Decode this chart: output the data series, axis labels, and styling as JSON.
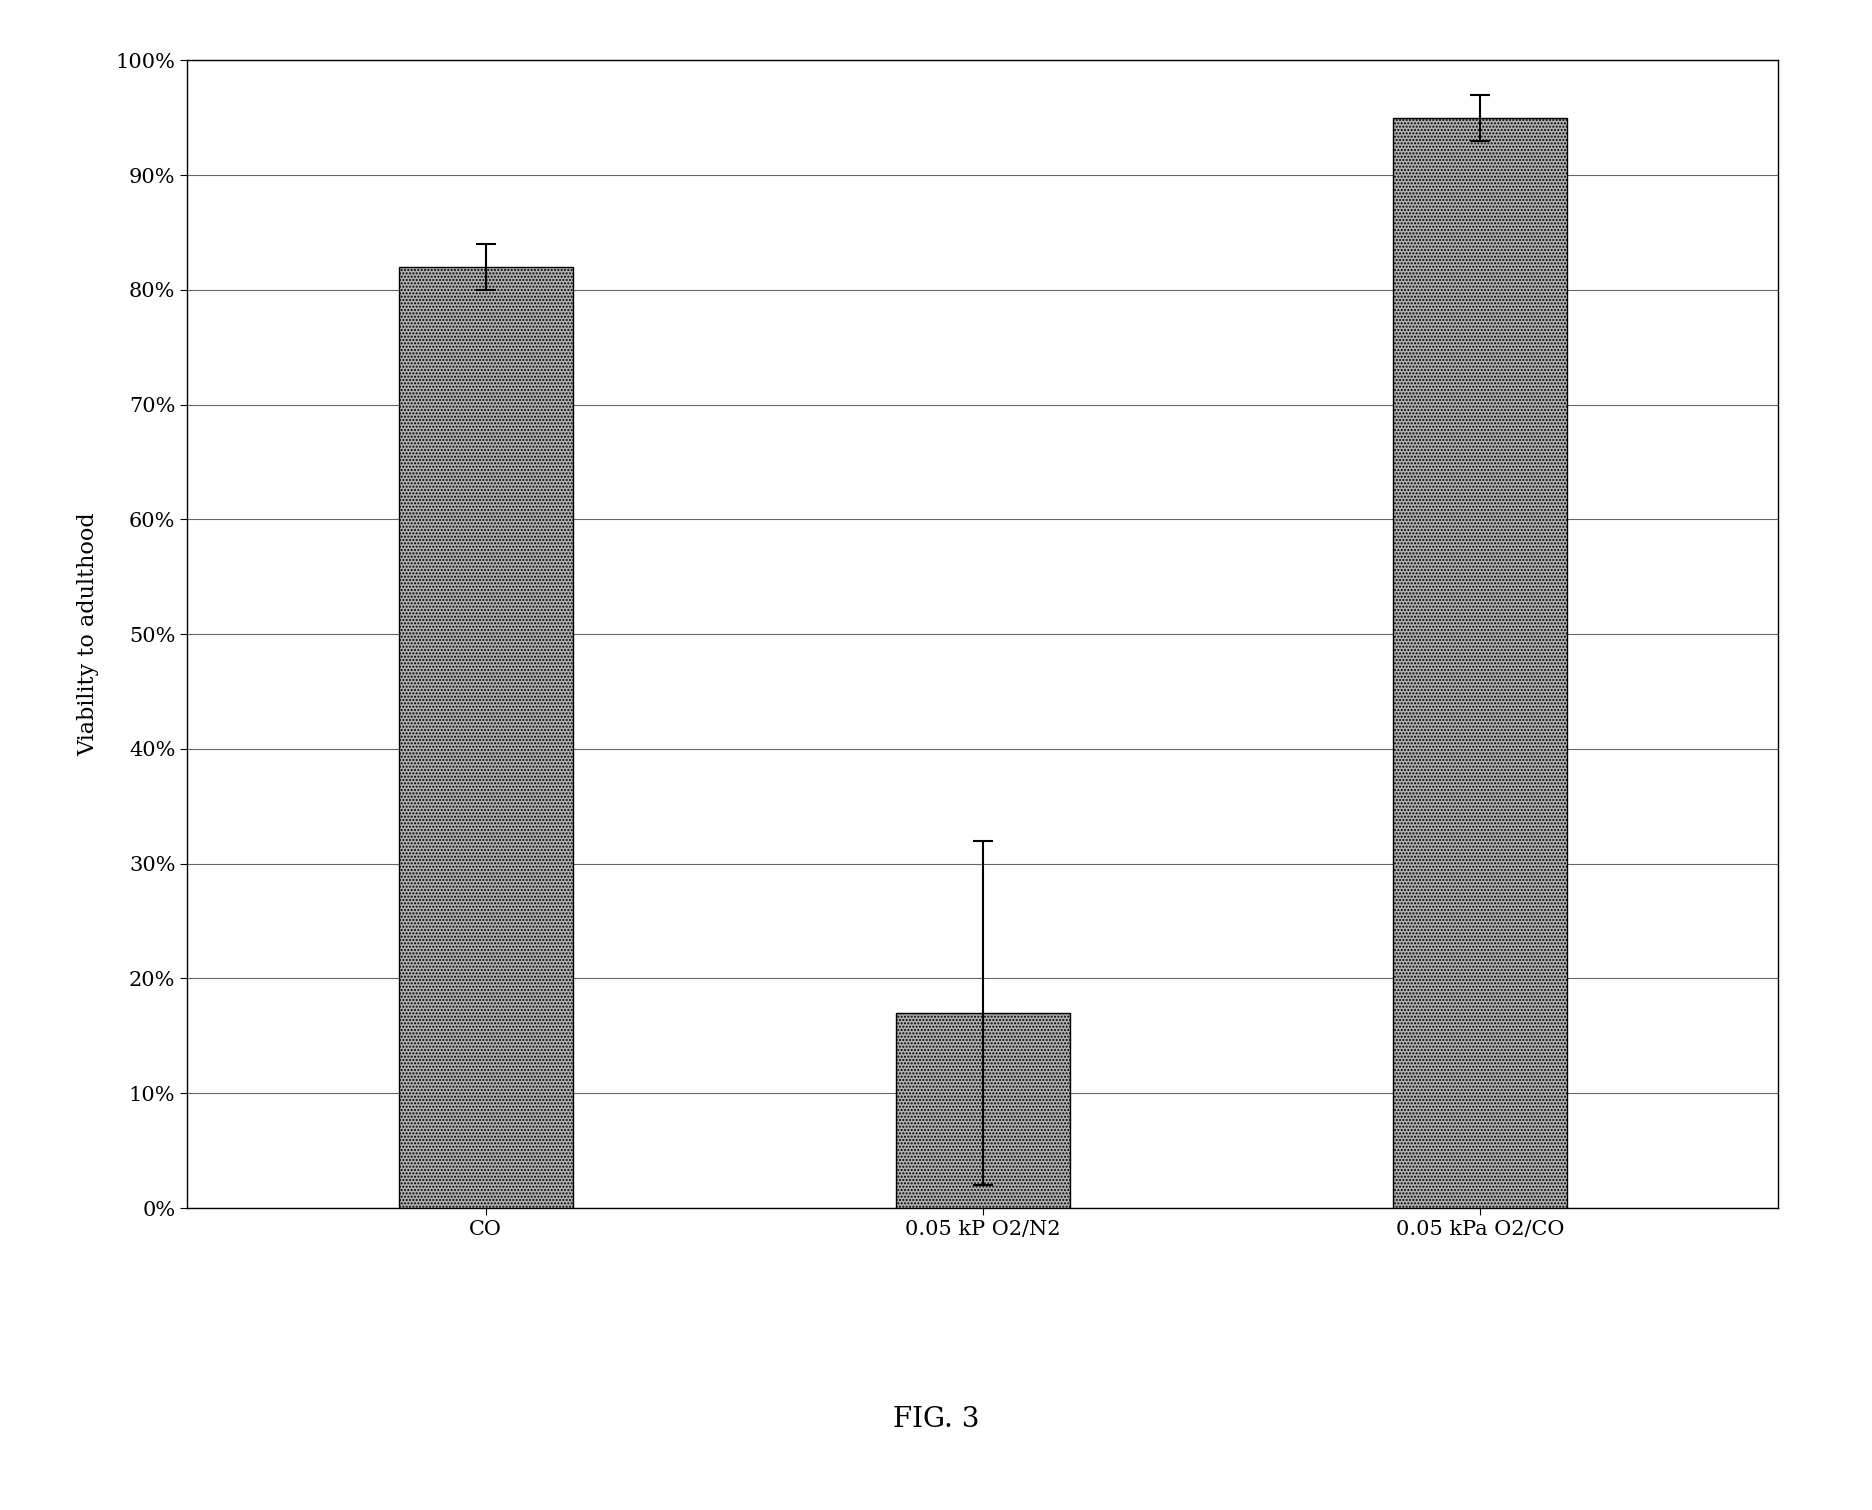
{
  "categories": [
    "CO",
    "0.05 kP O2/N2",
    "0.05 kPa O2/CO"
  ],
  "values": [
    0.82,
    0.17,
    0.95
  ],
  "errors": [
    0.02,
    0.15,
    0.02
  ],
  "ylabel": "Viability to adulthood",
  "ylim": [
    0.0,
    1.0
  ],
  "yticks": [
    0.0,
    0.1,
    0.2,
    0.3,
    0.4,
    0.5,
    0.6,
    0.7,
    0.8,
    0.9,
    1.0
  ],
  "yticklabels": [
    "0%",
    "10%",
    "20%",
    "30%",
    "40%",
    "50%",
    "60%",
    "70%",
    "80%",
    "90%",
    "100%"
  ],
  "bar_color": "#b0b0b0",
  "bar_hatch": ".....",
  "bar_edge_color": "#000000",
  "caption": "FIG. 3",
  "background_color": "#ffffff",
  "grid_color": "#666666",
  "bar_width": 0.35,
  "axis_fontsize": 16,
  "tick_fontsize": 15,
  "caption_fontsize": 20,
  "xlabel_fontsize": 15
}
